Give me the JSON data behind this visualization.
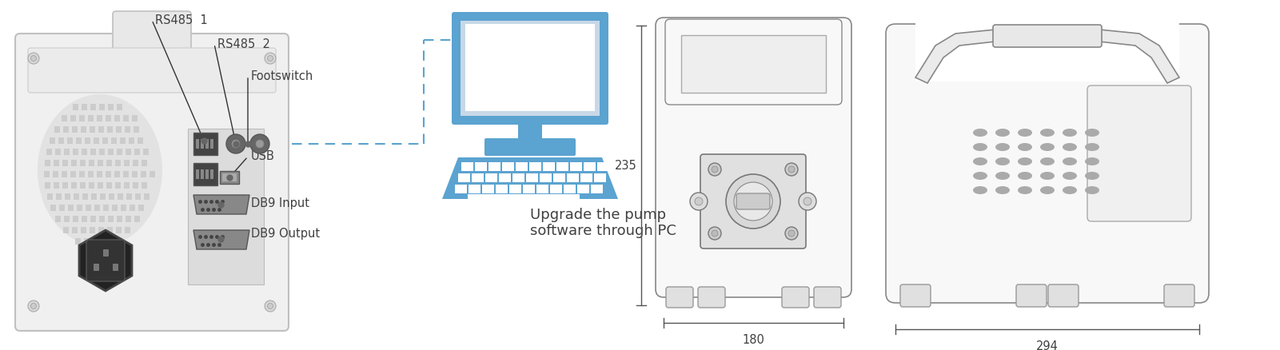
{
  "bg_color": "#ffffff",
  "labels": {
    "rs485_1": "RS485  1",
    "rs485_2": "RS485  2",
    "footswitch": "Footswitch",
    "usb": "USB",
    "db9_input": "DB9 Input",
    "db9_output": "DB9 Output",
    "upgrade_line1": "Upgrade the pump",
    "upgrade_line2": "software through PC",
    "dim_235": "235",
    "dim_180": "180",
    "dim_294": "294"
  },
  "colors": {
    "text": "#404040",
    "line": "#333333",
    "blue": "#5ba3d0",
    "blue_dark": "#4a8ab5",
    "blue_light": "#a8cde8",
    "dim_line": "#555555",
    "pump_body": "#e8e8e8",
    "pump_edge": "#aaaaaa",
    "draw_line": "#888888",
    "draw_face": "#f0f0f0"
  },
  "font_sizes": {
    "label": 10.5,
    "caption": 13,
    "dim": 10.5
  }
}
